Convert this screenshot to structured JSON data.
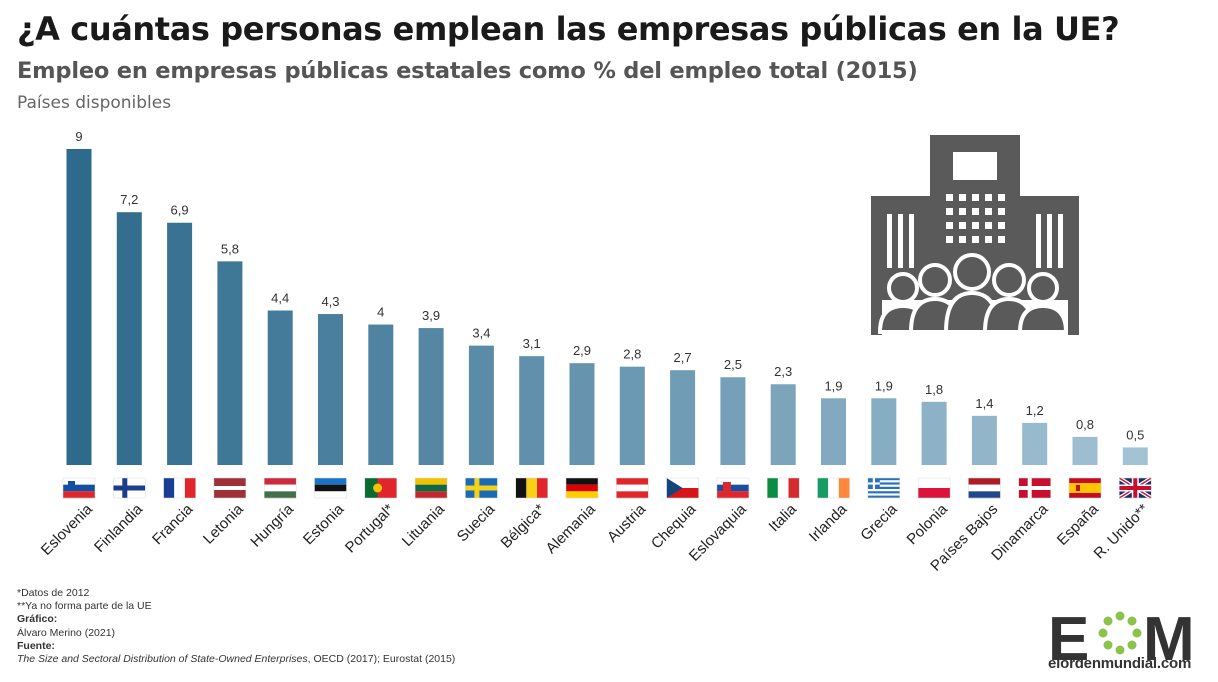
{
  "header": {
    "title": "¿A cuántas personas emplean las empresas públicas en la UE?",
    "subtitle": "Empleo en empresas públicas estatales como % del empleo total (2015)",
    "note": "Países disponibles"
  },
  "chart_data": {
    "type": "bar",
    "title": "Empleo en empresas públicas estatales como % del empleo total (2015)",
    "xlabel": "",
    "ylabel": "",
    "ylim": [
      0,
      9
    ],
    "grid": false,
    "categories": [
      "Eslovenia",
      "Finlandia",
      "Francia",
      "Letonia",
      "Hungría",
      "Estonia",
      "Portugal*",
      "Lituania",
      "Suecia",
      "Bélgica*",
      "Alemania",
      "Austria",
      "Chequia",
      "Eslovaquia",
      "Italia",
      "Irlanda",
      "Grecia",
      "Polonia",
      "Países Bajos",
      "Dinamarca",
      "España",
      "R. Unido**"
    ],
    "values": [
      9,
      7.2,
      6.9,
      5.8,
      4.4,
      4.3,
      4,
      3.9,
      3.4,
      3.1,
      2.9,
      2.8,
      2.7,
      2.5,
      2.3,
      1.9,
      1.9,
      1.8,
      1.4,
      1.2,
      0.8,
      0.5
    ],
    "value_labels": [
      "9",
      "7,2",
      "6,9",
      "5,8",
      "4,4",
      "4,3",
      "4",
      "3,9",
      "3,4",
      "3,1",
      "2,9",
      "2,8",
      "2,7",
      "2,5",
      "2,3",
      "1,9",
      "1,9",
      "1,8",
      "1,4",
      "1,2",
      "0,8",
      "0,5"
    ],
    "flags": [
      "si",
      "fi",
      "fr",
      "lv",
      "hu",
      "ee",
      "pt",
      "lt",
      "se",
      "be",
      "de",
      "at",
      "cz",
      "sk",
      "it",
      "ie",
      "gr",
      "pl",
      "nl",
      "dk",
      "es",
      "gb"
    ],
    "colors": {
      "bar_start": "#2e6a8c",
      "bar_end": "#a3c2d4",
      "label": "#333333"
    }
  },
  "icon": {
    "name": "public-building-with-people-icon",
    "color": "#5a5a5a"
  },
  "footer": {
    "notes": [
      "*Datos de 2012",
      "**Ya no forma parte de la UE"
    ],
    "graphic_label": "Gráfico:",
    "graphic_author": "Álvaro Merino (2021)",
    "source_label": "Fuente:",
    "source_title": "The Size and Sectoral Distribution of State-Owned Enterprises",
    "source_rest": ", OECD (2017); Eurostat (2015)"
  },
  "logo": {
    "text": "EOM",
    "url": "elordenmundial.com"
  }
}
